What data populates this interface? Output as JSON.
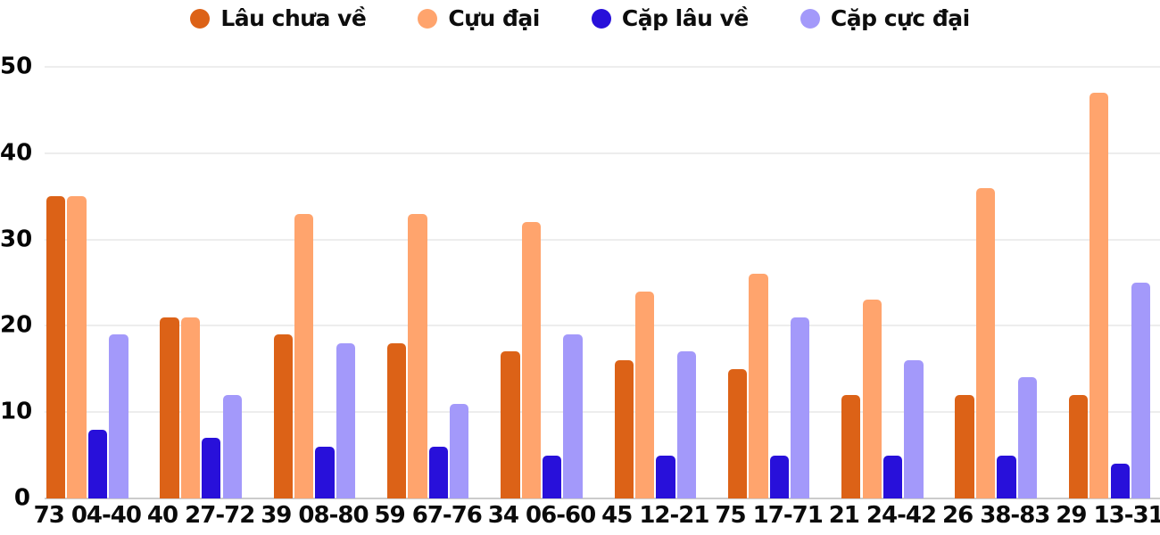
{
  "chart_data": {
    "type": "bar",
    "title": "",
    "categories": [
      "73 04-40",
      "40 27-72",
      "39 08-80",
      "59 67-76",
      "34 06-60",
      "45 12-21",
      "75 17-71",
      "21 24-42",
      "26 38-83",
      "29 13-31"
    ],
    "series": [
      {
        "name": "Lâu chưa về",
        "color": "#DC6217",
        "values": [
          35,
          21,
          19,
          18,
          17,
          16,
          15,
          12,
          12,
          12
        ]
      },
      {
        "name": "Cựu đại",
        "color": "#FFA46D",
        "values": [
          35,
          21,
          33,
          33,
          32,
          24,
          26,
          23,
          36,
          47
        ]
      },
      {
        "name": "Cặp lâu về",
        "color": "#2810DA",
        "values": [
          8,
          7,
          6,
          6,
          5,
          5,
          5,
          5,
          5,
          4
        ]
      },
      {
        "name": "Cặp cực đại",
        "color": "#A399FA",
        "values": [
          19,
          12,
          18,
          11,
          19,
          17,
          21,
          16,
          14,
          25
        ]
      }
    ],
    "xlabel": "",
    "ylabel": "",
    "ylim": [
      0,
      50
    ],
    "yticks": [
      0,
      10,
      20,
      30,
      40,
      50
    ],
    "grid": true,
    "legend_position": "top",
    "colors": {
      "grid": "#ededed",
      "axis_line": "#cccccc",
      "text": "#0d0d0d",
      "background": "#ffffff"
    }
  }
}
